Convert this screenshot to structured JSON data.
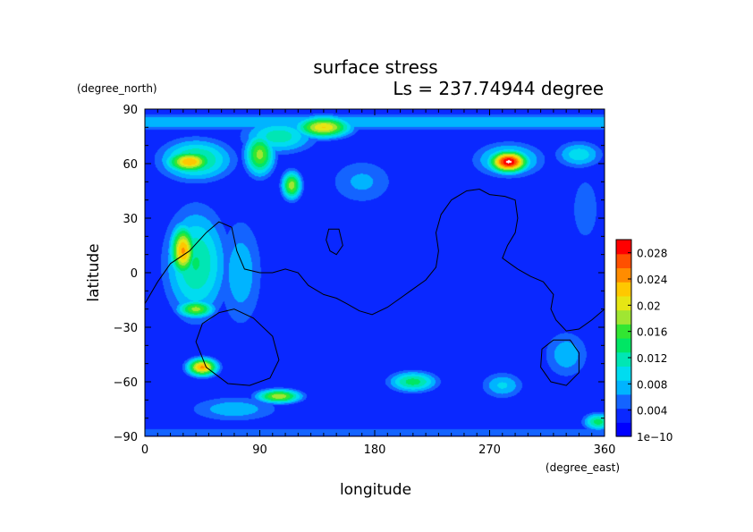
{
  "chart_data": {
    "type": "heatmap",
    "title": "surface stress",
    "subtitle": "Ls = 237.74944 degree",
    "xlabel": "longitude",
    "ylabel": "latitude",
    "x_units": "(degree_east)",
    "y_units": "(degree_north)",
    "xlim": [
      0,
      360
    ],
    "ylim": [
      -90,
      90
    ],
    "x_ticks": [
      0,
      90,
      180,
      270,
      360
    ],
    "x_tick_labels": [
      "0",
      "90",
      "180",
      "270",
      "360"
    ],
    "y_ticks": [
      90,
      60,
      30,
      0,
      -30,
      -60,
      -90
    ],
    "y_tick_labels": [
      "90",
      "60",
      "30",
      "0",
      "−30",
      "−60",
      "−90"
    ],
    "colorbar": {
      "min": 0,
      "max": 0.03,
      "tick_values": [
        0,
        0.004,
        0.008,
        0.012,
        0.016,
        0.02,
        0.024,
        0.028
      ],
      "tick_labels": [
        "1e−10",
        "0.004",
        "0.008",
        "0.012",
        "0.016",
        "0.02",
        "0.024",
        "0.028"
      ],
      "colors": [
        "#0000ff",
        "#0a28ff",
        "#1464ff",
        "#00b4ff",
        "#00dcf0",
        "#00e6b4",
        "#00e664",
        "#32e632",
        "#a0e632",
        "#e6e614",
        "#ffc800",
        "#ff8c00",
        "#ff5000",
        "#ff0000"
      ]
    },
    "background_level": 0.0025,
    "blobs": [
      {
        "lon": 35,
        "lat": 61,
        "value": 0.0235,
        "lon_radius": 18,
        "lat_radius": 6
      },
      {
        "lon": 40,
        "lat": 62,
        "value": 0.014,
        "lon_radius": 30,
        "lat_radius": 12
      },
      {
        "lon": 90,
        "lat": 65,
        "value": 0.018,
        "lon_radius": 12,
        "lat_radius": 12
      },
      {
        "lon": 105,
        "lat": 75,
        "value": 0.012,
        "lon_radius": 30,
        "lat_radius": 10
      },
      {
        "lon": 140,
        "lat": 80,
        "value": 0.0215,
        "lon_radius": 22,
        "lat_radius": 6
      },
      {
        "lon": 115,
        "lat": 48,
        "value": 0.0185,
        "lon_radius": 8,
        "lat_radius": 8
      },
      {
        "lon": 30,
        "lat": 12,
        "value": 0.024,
        "lon_radius": 10,
        "lat_radius": 14
      },
      {
        "lon": 40,
        "lat": 5,
        "value": 0.013,
        "lon_radius": 26,
        "lat_radius": 32
      },
      {
        "lon": 75,
        "lat": 0,
        "value": 0.008,
        "lon_radius": 20,
        "lat_radius": 35
      },
      {
        "lon": 40,
        "lat": -20,
        "value": 0.018,
        "lon_radius": 15,
        "lat_radius": 5
      },
      {
        "lon": 45,
        "lat": -52,
        "value": 0.024,
        "lon_radius": 12,
        "lat_radius": 5
      },
      {
        "lon": 105,
        "lat": -68,
        "value": 0.019,
        "lon_radius": 18,
        "lat_radius": 4
      },
      {
        "lon": 70,
        "lat": -75,
        "value": 0.008,
        "lon_radius": 40,
        "lat_radius": 8
      },
      {
        "lon": 210,
        "lat": -60,
        "value": 0.014,
        "lon_radius": 20,
        "lat_radius": 6
      },
      {
        "lon": 280,
        "lat": -62,
        "value": 0.009,
        "lon_radius": 18,
        "lat_radius": 8
      },
      {
        "lon": 285,
        "lat": 61,
        "value": 0.0305,
        "lon_radius": 15,
        "lat_radius": 6
      },
      {
        "lon": 285,
        "lat": 62,
        "value": 0.012,
        "lon_radius": 28,
        "lat_radius": 10
      },
      {
        "lon": 340,
        "lat": 65,
        "value": 0.01,
        "lon_radius": 20,
        "lat_radius": 8
      },
      {
        "lon": 355,
        "lat": -82,
        "value": 0.014,
        "lon_radius": 12,
        "lat_radius": 5
      },
      {
        "lon": 330,
        "lat": -45,
        "value": 0.008,
        "lon_radius": 20,
        "lat_radius": 15
      },
      {
        "lon": 170,
        "lat": 50,
        "value": 0.007,
        "lon_radius": 30,
        "lat_radius": 15
      },
      {
        "lon": 345,
        "lat": 35,
        "value": 0.006,
        "lon_radius": 15,
        "lat_radius": 25
      }
    ],
    "polar_bands": [
      {
        "lat": 83,
        "value": 0.0085,
        "lat_radius": 5
      },
      {
        "lat": -88,
        "value": 0.006,
        "lat_radius": 3
      }
    ],
    "contours": [
      {
        "name": "dichotomy-boundary",
        "closed": false,
        "points": [
          [
            0,
            -17
          ],
          [
            10,
            -5
          ],
          [
            20,
            5
          ],
          [
            35,
            12
          ],
          [
            48,
            22
          ],
          [
            58,
            28
          ],
          [
            68,
            25
          ],
          [
            72,
            12
          ],
          [
            78,
            2
          ],
          [
            90,
            0
          ],
          [
            100,
            0
          ],
          [
            110,
            2
          ],
          [
            120,
            0
          ],
          [
            128,
            -7
          ],
          [
            140,
            -12
          ],
          [
            150,
            -14
          ],
          [
            158,
            -17
          ],
          [
            168,
            -21
          ],
          [
            178,
            -23
          ],
          [
            190,
            -19
          ],
          [
            200,
            -14
          ],
          [
            210,
            -9
          ],
          [
            220,
            -4
          ],
          [
            228,
            3
          ],
          [
            230,
            12
          ],
          [
            228,
            22
          ],
          [
            232,
            32
          ],
          [
            240,
            40
          ],
          [
            252,
            45
          ],
          [
            262,
            46
          ],
          [
            270,
            43
          ],
          [
            282,
            42
          ],
          [
            290,
            40
          ],
          [
            292,
            30
          ],
          [
            290,
            22
          ],
          [
            284,
            15
          ],
          [
            280,
            8
          ],
          [
            284,
            6
          ],
          [
            292,
            2
          ],
          [
            302,
            -2
          ],
          [
            312,
            -5
          ],
          [
            320,
            -12
          ],
          [
            318,
            -20
          ],
          [
            322,
            -26
          ],
          [
            330,
            -32
          ],
          [
            340,
            -31
          ],
          [
            350,
            -26
          ],
          [
            360,
            -20
          ]
        ]
      },
      {
        "name": "small-closed-contour",
        "closed": true,
        "points": [
          [
            144,
            24
          ],
          [
            152,
            24
          ],
          [
            155,
            15
          ],
          [
            150,
            10
          ],
          [
            145,
            12
          ],
          [
            142,
            18
          ]
        ]
      },
      {
        "name": "hellas-contour",
        "closed": true,
        "points": [
          [
            70,
            -20
          ],
          [
            85,
            -25
          ],
          [
            100,
            -35
          ],
          [
            105,
            -48
          ],
          [
            98,
            -58
          ],
          [
            82,
            -62
          ],
          [
            65,
            -61
          ],
          [
            48,
            -52
          ],
          [
            40,
            -38
          ],
          [
            45,
            -28
          ],
          [
            58,
            -22
          ]
        ]
      },
      {
        "name": "argyre-contour",
        "closed": true,
        "points": [
          [
            320,
            -37
          ],
          [
            333,
            -37
          ],
          [
            340,
            -44
          ],
          [
            340,
            -55
          ],
          [
            330,
            -62
          ],
          [
            318,
            -60
          ],
          [
            310,
            -52
          ],
          [
            311,
            -42
          ]
        ]
      }
    ]
  }
}
